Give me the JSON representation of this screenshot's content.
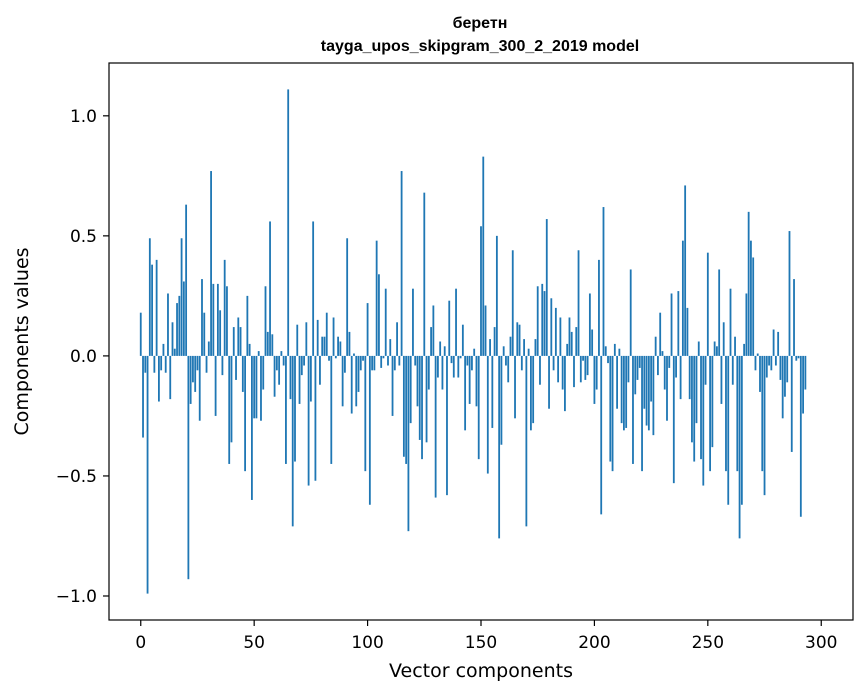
{
  "chart_data": {
    "type": "bar",
    "title_line1": "беретн",
    "title_line2": "tayga_upos_skipgram_300_2_2019 model",
    "xlabel": "Vector components",
    "ylabel": "Components values",
    "xlim": [
      -14,
      314
    ],
    "ylim": [
      -1.1,
      1.22
    ],
    "xticks": [
      0,
      50,
      100,
      150,
      200,
      250,
      300
    ],
    "xtick_labels": [
      "0",
      "50",
      "100",
      "150",
      "200",
      "250",
      "300"
    ],
    "yticks": [
      -1.0,
      -0.5,
      0.0,
      0.5,
      1.0
    ],
    "ytick_labels": [
      "−1.0",
      "−0.5",
      "0.0",
      "0.5",
      "1.0"
    ],
    "bar_color": "#1f77b4",
    "grid": false,
    "values": [
      0.18,
      -0.34,
      -0.07,
      -0.99,
      0.49,
      0.38,
      -0.07,
      0.4,
      -0.19,
      -0.06,
      0.05,
      -0.07,
      0.26,
      -0.18,
      0.14,
      0.03,
      0.22,
      0.25,
      0.49,
      0.31,
      0.63,
      -0.93,
      -0.2,
      -0.11,
      -0.15,
      -0.06,
      -0.27,
      0.32,
      0.18,
      -0.07,
      0.06,
      0.77,
      0.3,
      -0.25,
      0.3,
      0.19,
      -0.08,
      0.4,
      0.29,
      -0.45,
      -0.36,
      0.12,
      -0.1,
      0.16,
      0.12,
      -0.15,
      -0.48,
      0.25,
      0.05,
      -0.6,
      -0.26,
      -0.26,
      0.02,
      -0.27,
      -0.14,
      0.29,
      0.1,
      0.56,
      0.09,
      -0.17,
      -0.06,
      -0.12,
      0.02,
      -0.04,
      -0.45,
      1.11,
      -0.18,
      -0.71,
      -0.44,
      0.13,
      -0.2,
      -0.08,
      -0.04,
      0.14,
      -0.54,
      -0.19,
      0.56,
      -0.52,
      0.15,
      -0.12,
      0.08,
      0.08,
      0.18,
      -0.02,
      -0.45,
      0.16,
      -0.01,
      0.08,
      0.06,
      -0.21,
      -0.07,
      0.49,
      0.1,
      -0.24,
      0.01,
      -0.21,
      -0.15,
      -0.06,
      -0.02,
      -0.48,
      0.22,
      -0.62,
      -0.06,
      -0.06,
      0.48,
      0.34,
      -0.05,
      -0.01,
      0.28,
      -0.04,
      0.07,
      -0.25,
      -0.06,
      0.14,
      -0.04,
      0.77,
      -0.42,
      -0.45,
      -0.73,
      -0.28,
      0.28,
      -0.04,
      -0.21,
      -0.35,
      -0.43,
      0.68,
      -0.36,
      -0.14,
      0.12,
      0.21,
      -0.59,
      -0.09,
      0.06,
      -0.14,
      0.04,
      -0.58,
      0.23,
      -0.03,
      -0.09,
      0.28,
      -0.09,
      -0.01,
      0.13,
      -0.31,
      -0.04,
      -0.2,
      -0.06,
      0.03,
      -0.21,
      -0.43,
      0.54,
      0.83,
      0.21,
      -0.49,
      0.07,
      -0.3,
      0.12,
      0.5,
      -0.76,
      -0.37,
      0.04,
      -0.04,
      -0.11,
      0.08,
      0.44,
      -0.26,
      0.14,
      0.13,
      -0.06,
      0.07,
      -0.71,
      0.03,
      -0.31,
      -0.28,
      0.07,
      0.29,
      -0.12,
      0.3,
      0.27,
      0.57,
      -0.22,
      0.24,
      -0.06,
      0.2,
      -0.11,
      0.16,
      -0.14,
      -0.23,
      0.05,
      0.16,
      0.1,
      -0.13,
      0.12,
      0.44,
      -0.11,
      -0.02,
      -0.1,
      -0.08,
      0.26,
      0.11,
      -0.2,
      -0.14,
      0.4,
      -0.66,
      0.62,
      0.04,
      -0.03,
      -0.44,
      -0.48,
      0.05,
      -0.22,
      0.03,
      -0.28,
      -0.31,
      -0.3,
      -0.11,
      0.36,
      -0.45,
      -0.16,
      -0.1,
      -0.05,
      -0.48,
      -0.22,
      -0.29,
      -0.31,
      -0.19,
      -0.33,
      0.08,
      -0.08,
      0.18,
      0.02,
      -0.14,
      -0.27,
      -0.05,
      0.26,
      -0.53,
      -0.09,
      0.27,
      -0.18,
      0.48,
      0.71,
      0.2,
      -0.18,
      -0.36,
      -0.44,
      -0.28,
      0.06,
      -0.43,
      -0.54,
      -0.12,
      0.43,
      -0.48,
      -0.38,
      0.06,
      0.04,
      0.36,
      -0.2,
      0.14,
      -0.48,
      -0.62,
      0.28,
      -0.12,
      0.08,
      -0.48,
      -0.76,
      -0.62,
      0.05,
      0.26,
      0.6,
      0.48,
      0.41,
      -0.06,
      0.01,
      -0.15,
      -0.48,
      -0.58,
      -0.09,
      -0.04,
      -0.06,
      0.11,
      -0.04,
      0.1,
      -0.1,
      -0.26,
      -0.17,
      -0.11,
      0.52,
      -0.4,
      0.32,
      -0.02,
      -0.01,
      -0.67,
      -0.24,
      -0.14
    ]
  }
}
